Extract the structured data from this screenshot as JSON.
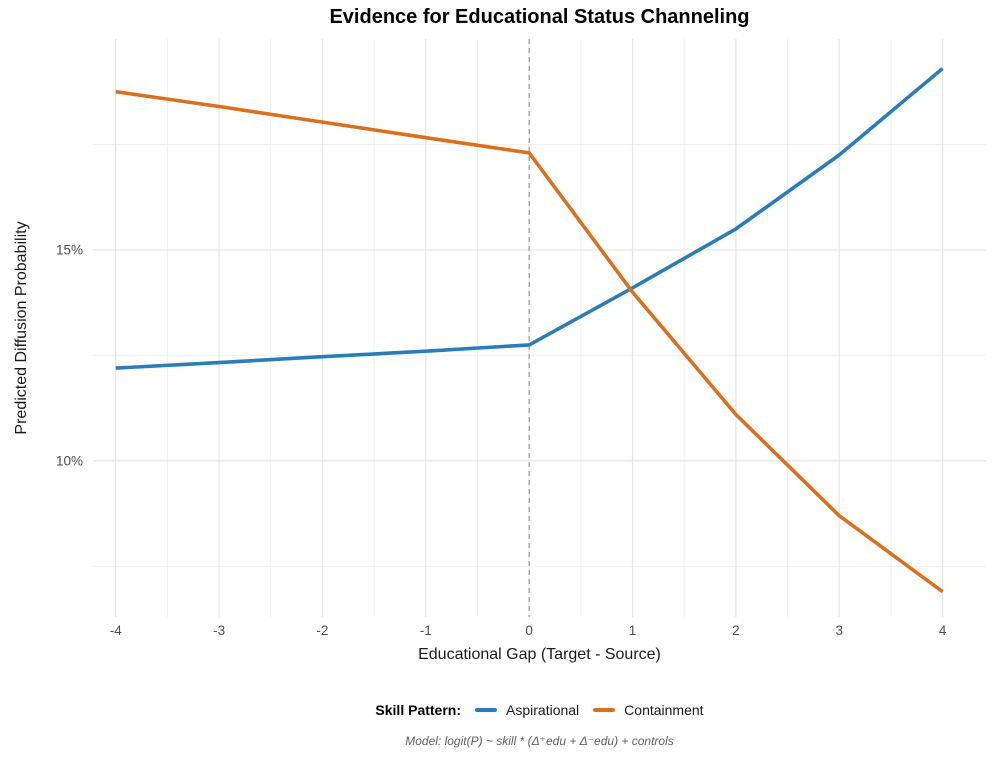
{
  "title": "Evidence for Educational Status Channeling",
  "legend": {
    "title": "Skill Pattern:"
  },
  "caption": "Model: logit(P) ~ skill * (Δ⁺edu + Δ⁻edu) + controls",
  "chart_data": {
    "type": "line",
    "title": "Evidence for Educational Status Channeling",
    "xlabel": "Educational Gap (Target - Source)",
    "ylabel": "Predicted Diffusion Probability",
    "y_unit": "percent",
    "x": [
      -4,
      -3,
      -2,
      -1,
      0,
      1,
      2,
      3,
      4
    ],
    "series": [
      {
        "name": "Aspirational",
        "color": "#2A7DB6",
        "values": [
          12.2,
          12.33,
          12.47,
          12.6,
          12.75,
          14.1,
          15.5,
          17.25,
          19.3
        ]
      },
      {
        "name": "Containment",
        "color": "#D9701E",
        "values": [
          18.75,
          18.4,
          18.03,
          17.66,
          17.3,
          14.0,
          11.1,
          8.7,
          6.9
        ]
      }
    ],
    "xlim": [
      -4.22,
      4.42
    ],
    "ylim": [
      6.3,
      20.0
    ],
    "x_ticks": [
      {
        "value": -4,
        "label": "-4"
      },
      {
        "value": -3,
        "label": "-3"
      },
      {
        "value": -2,
        "label": "-2"
      },
      {
        "value": -1,
        "label": "-1"
      },
      {
        "value": 0,
        "label": "0"
      },
      {
        "value": 1,
        "label": "1"
      },
      {
        "value": 2,
        "label": "2"
      },
      {
        "value": 3,
        "label": "3"
      },
      {
        "value": 4,
        "label": "4"
      }
    ],
    "x_minor": [
      -3.5,
      -2.5,
      -1.5,
      -0.5,
      0.5,
      1.5,
      2.5,
      3.5
    ],
    "y_ticks": [
      {
        "value": 10,
        "label": "10%"
      },
      {
        "value": 15,
        "label": "15%"
      }
    ],
    "y_minor": [
      7.5,
      12.5,
      17.5
    ],
    "reference_line": {
      "x": 0,
      "style": "dashed",
      "color": "#9E9E9E"
    },
    "grid": true,
    "grid_major_color": "#E5E5E5",
    "grid_minor_color": "#F0F0F0",
    "legend_position": "bottom",
    "line_width": 3.6
  }
}
